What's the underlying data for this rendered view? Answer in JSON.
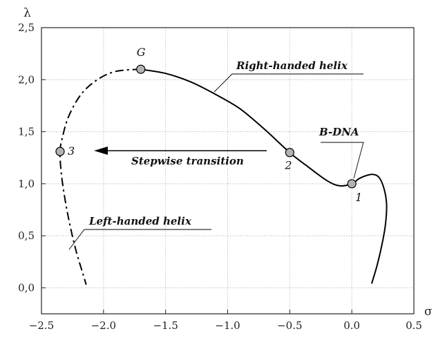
{
  "chart_data": {
    "type": "line",
    "xlabel": "σ",
    "ylabel": "λ",
    "xlim": [
      -2.5,
      0.5
    ],
    "ylim": [
      -0.25,
      2.5
    ],
    "grid": true,
    "x_ticks": [
      -2.5,
      -2.0,
      -1.5,
      -1.0,
      -0.5,
      0.0,
      0.5
    ],
    "x_tick_labels": [
      "−2.5",
      "−2.0",
      "−1.5",
      "−1.0",
      "−0.5",
      "0.0",
      "0.5"
    ],
    "y_ticks": [
      0.0,
      0.5,
      1.0,
      1.5,
      2.0,
      2.5
    ],
    "y_tick_labels": [
      "0,0",
      "0,5",
      "1,0",
      "1,5",
      "2,0",
      "2,5"
    ],
    "series": [
      {
        "name": "Right-handed helix",
        "style": "solid",
        "points": [
          [
            -1.7,
            2.1
          ],
          [
            -1.5,
            2.06
          ],
          [
            -1.3,
            1.98
          ],
          [
            -1.1,
            1.86
          ],
          [
            -0.9,
            1.72
          ],
          [
            -0.7,
            1.52
          ],
          [
            -0.5,
            1.3
          ],
          [
            -0.35,
            1.16
          ],
          [
            -0.2,
            1.03
          ],
          [
            -0.1,
            0.98
          ],
          [
            0.0,
            1.0
          ],
          [
            0.06,
            1.05
          ],
          [
            0.12,
            1.08
          ],
          [
            0.17,
            1.09
          ],
          [
            0.22,
            1.06
          ],
          [
            0.26,
            0.95
          ],
          [
            0.28,
            0.8
          ],
          [
            0.27,
            0.6
          ],
          [
            0.24,
            0.4
          ],
          [
            0.2,
            0.2
          ],
          [
            0.16,
            0.04
          ]
        ]
      },
      {
        "name": "Left-handed helix",
        "style": "dash-dot",
        "points": [
          [
            -1.7,
            2.1
          ],
          [
            -1.9,
            2.08
          ],
          [
            -2.05,
            2.0
          ],
          [
            -2.18,
            1.86
          ],
          [
            -2.28,
            1.65
          ],
          [
            -2.33,
            1.45
          ],
          [
            -2.35,
            1.31
          ],
          [
            -2.34,
            1.1
          ],
          [
            -2.31,
            0.85
          ],
          [
            -2.27,
            0.6
          ],
          [
            -2.22,
            0.35
          ],
          [
            -2.17,
            0.15
          ],
          [
            -2.14,
            0.03
          ]
        ]
      }
    ],
    "points": [
      {
        "label": "G",
        "x": -1.7,
        "y": 2.1
      },
      {
        "label": "2",
        "x": -0.5,
        "y": 1.3
      },
      {
        "label": "1",
        "x": 0.0,
        "y": 1.0
      },
      {
        "label": "3",
        "x": -2.35,
        "y": 1.31
      }
    ],
    "annotations": {
      "right_handed": "Right-handed helix",
      "left_handed": "Left-handed helix",
      "bdna": "B-DNA",
      "transition": "Stepwise transition"
    },
    "colors": {
      "line": "#000000",
      "marker_fill": "#b3b3b3",
      "grid": "#bdbdbd"
    }
  }
}
